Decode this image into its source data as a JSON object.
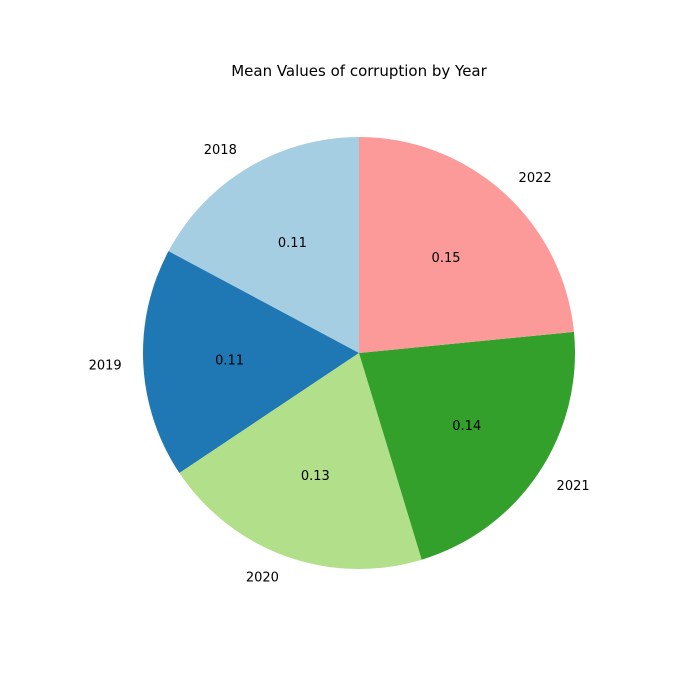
{
  "chart_data": {
    "type": "pie",
    "title": "Mean Values of corruption by Year",
    "categories": [
      "2018",
      "2019",
      "2020",
      "2021",
      "2022"
    ],
    "values": [
      0.11,
      0.11,
      0.13,
      0.14,
      0.15
    ],
    "value_labels": [
      "0.11",
      "0.11",
      "0.13",
      "0.14",
      "0.15"
    ],
    "colors": [
      "#a6cee3",
      "#1f78b4",
      "#b2df8a",
      "#33a02c",
      "#fb9a99"
    ],
    "start_angle_deg": 90,
    "direction": "counterclockwise",
    "legend": "none"
  }
}
